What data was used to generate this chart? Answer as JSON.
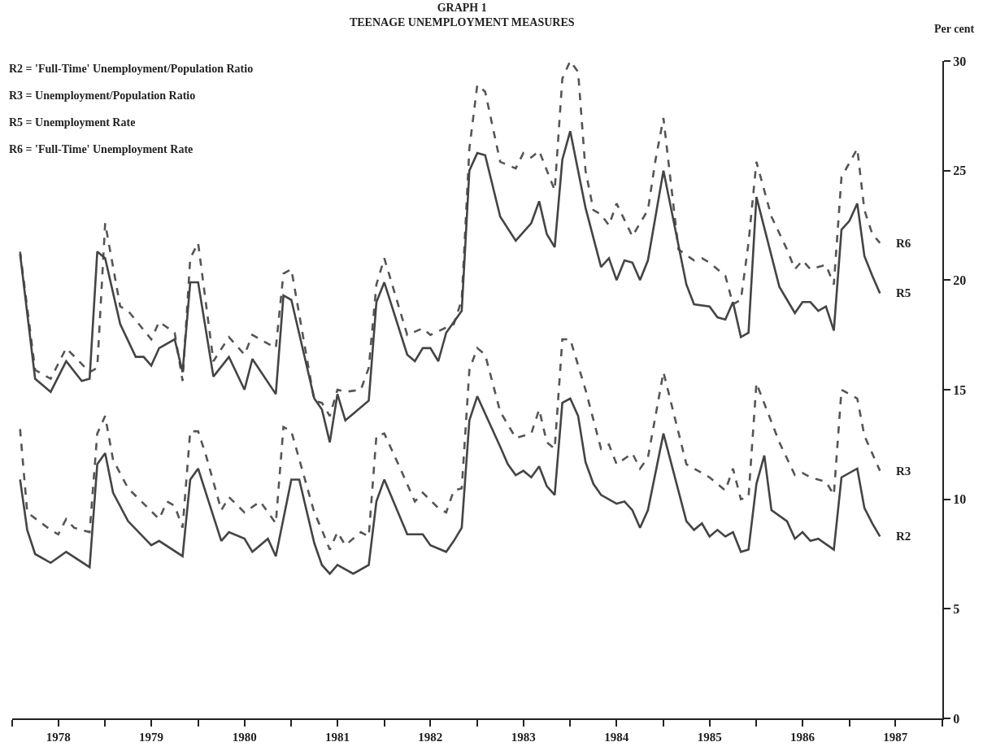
{
  "chart_data": {
    "type": "line",
    "title": "GRAPH 1\nTEENAGE UNEMPLOYMENT MEASURES",
    "ylabel": "Per cent",
    "annotations": [
      "R2 = 'Full-Time' Unemployment/Population Ratio",
      "R3 = Unemployment/Population Ratio",
      "R5 = Unemployment Rate",
      "R6 = 'Full-Time' Unemployment Rate"
    ],
    "xlim": [
      "1978-01",
      "1988-01"
    ],
    "xticks": [
      {
        "value": "1978-01",
        "label": null
      },
      {
        "value": "1978-07",
        "label": "1978"
      },
      {
        "value": "1979-01",
        "label": null
      },
      {
        "value": "1979-07",
        "label": "1979"
      },
      {
        "value": "1980-01",
        "label": null
      },
      {
        "value": "1980-07",
        "label": "1980"
      },
      {
        "value": "1981-01",
        "label": null
      },
      {
        "value": "1981-07",
        "label": "1981"
      },
      {
        "value": "1982-01",
        "label": null
      },
      {
        "value": "1982-07",
        "label": "1982"
      },
      {
        "value": "1983-01",
        "label": null
      },
      {
        "value": "1983-07",
        "label": "1983"
      },
      {
        "value": "1984-01",
        "label": null
      },
      {
        "value": "1984-07",
        "label": "1984"
      },
      {
        "value": "1985-01",
        "label": null
      },
      {
        "value": "1985-07",
        "label": "1985"
      },
      {
        "value": "1986-01",
        "label": null
      },
      {
        "value": "1986-07",
        "label": "1986"
      },
      {
        "value": "1987-01",
        "label": null
      },
      {
        "value": "1987-07",
        "label": "1987"
      },
      {
        "value": "1988-01",
        "label": null
      }
    ],
    "ylim": [
      0,
      30
    ],
    "yticks": [
      0,
      5,
      10,
      15,
      20,
      25,
      30
    ],
    "grid": false,
    "legend": false,
    "marker": "none",
    "series": [
      {
        "name": "R6",
        "color": "#555555",
        "line_style": "dashed",
        "x": [
          "1978-02",
          "1978-04",
          "1978-06",
          "1978-08",
          "1978-11",
          "1978-12",
          "1979-01",
          "1979-03",
          "1979-04",
          "1979-07",
          "1979-08",
          "1979-10",
          "1979-11",
          "1979-12",
          "1980-01",
          "1980-03",
          "1980-05",
          "1980-07",
          "1980-08",
          "1980-11",
          "1980-12",
          "1981-01",
          "1981-04",
          "1981-05",
          "1981-06",
          "1981-07",
          "1981-08",
          "1981-10",
          "1981-11",
          "1981-12",
          "1982-01",
          "1982-04",
          "1982-06",
          "1982-07",
          "1982-10",
          "1982-11",
          "1982-12",
          "1983-01",
          "1983-02",
          "1983-04",
          "1983-06",
          "1983-07",
          "1983-08",
          "1983-09",
          "1983-11",
          "1983-12",
          "1984-01",
          "1984-02",
          "1984-03",
          "1984-04",
          "1984-05",
          "1984-06",
          "1984-07",
          "1984-09",
          "1984-10",
          "1984-11",
          "1984-12",
          "1985-01",
          "1985-03",
          "1985-05",
          "1985-06",
          "1985-07",
          "1985-09",
          "1985-10",
          "1985-11",
          "1985-12",
          "1986-01",
          "1986-03",
          "1986-05",
          "1986-06",
          "1986-07",
          "1986-08",
          "1986-10",
          "1986-11",
          "1986-12",
          "1987-02",
          "1987-03",
          "1987-04",
          "1987-05"
        ],
        "values": [
          21.3,
          15.9,
          15.5,
          16.9,
          15.8,
          16.0,
          22.6,
          18.8,
          18.6,
          17.3,
          18.1,
          17.6,
          15.4,
          21.0,
          21.7,
          16.3,
          17.4,
          16.6,
          17.5,
          16.9,
          20.3,
          20.5,
          14.5,
          14.4,
          13.8,
          15.0,
          14.9,
          15.0,
          16.0,
          19.8,
          21.0,
          17.5,
          17.8,
          17.5,
          18.0,
          19.1,
          26.0,
          28.9,
          28.6,
          25.4,
          25.1,
          25.8,
          25.6,
          25.9,
          24.1,
          29.2,
          30.0,
          29.5,
          25.0,
          23.2,
          23.0,
          22.5,
          23.5,
          22.0,
          22.6,
          23.2,
          25.5,
          27.4,
          21.4,
          20.9,
          21.0,
          20.8,
          20.2,
          18.9,
          19.1,
          21.7,
          25.4,
          22.9,
          21.4,
          20.5,
          20.9,
          20.5,
          20.7,
          19.8,
          24.7,
          26.0,
          23.2,
          22.1,
          21.7
        ]
      },
      {
        "name": "R5",
        "color": "#444444",
        "line_style": "solid",
        "x": [
          "1978-02",
          "1978-04",
          "1978-06",
          "1978-08",
          "1978-10",
          "1978-11",
          "1978-12",
          "1979-01",
          "1979-03",
          "1979-05",
          "1979-06",
          "1979-07",
          "1979-08",
          "1979-10",
          "1979-11",
          "1979-12",
          "1980-01",
          "1980-03",
          "1980-05",
          "1980-07",
          "1980-08",
          "1980-11",
          "1980-12",
          "1981-01",
          "1981-04",
          "1981-05",
          "1981-06",
          "1981-07",
          "1981-08",
          "1981-11",
          "1981-12",
          "1982-01",
          "1982-04",
          "1982-05",
          "1982-06",
          "1982-07",
          "1982-08",
          "1982-09",
          "1982-11",
          "1982-12",
          "1983-01",
          "1983-02",
          "1983-04",
          "1983-06",
          "1983-08",
          "1983-09",
          "1983-10",
          "1983-11",
          "1983-12",
          "1984-01",
          "1984-03",
          "1984-05",
          "1984-06",
          "1984-07",
          "1984-08",
          "1984-09",
          "1984-10",
          "1984-11",
          "1985-01",
          "1985-04",
          "1985-05",
          "1985-07",
          "1985-08",
          "1985-09",
          "1985-10",
          "1985-11",
          "1985-12",
          "1986-01",
          "1986-04",
          "1986-06",
          "1986-07",
          "1986-08",
          "1986-09",
          "1986-10",
          "1986-11",
          "1986-12",
          "1987-01",
          "1987-02",
          "1987-03",
          "1987-04",
          "1987-05"
        ],
        "values": [
          21.2,
          15.5,
          14.9,
          16.3,
          15.4,
          15.5,
          21.3,
          21.0,
          18.0,
          16.5,
          16.5,
          16.1,
          16.9,
          17.3,
          15.8,
          19.9,
          19.9,
          15.6,
          16.5,
          15.0,
          16.4,
          14.8,
          19.3,
          19.1,
          14.6,
          14.1,
          12.6,
          14.8,
          13.6,
          14.5,
          19.0,
          19.9,
          16.6,
          16.3,
          16.9,
          16.9,
          16.3,
          17.6,
          18.6,
          25.0,
          25.8,
          25.7,
          22.9,
          21.8,
          22.6,
          23.6,
          22.1,
          21.5,
          25.5,
          26.8,
          23.3,
          20.6,
          21.0,
          20.0,
          20.9,
          20.8,
          20.0,
          20.9,
          25.0,
          19.8,
          18.9,
          18.8,
          18.3,
          18.2,
          19.0,
          17.4,
          17.6,
          23.8,
          19.7,
          18.5,
          19.0,
          19.0,
          18.6,
          18.8,
          17.7,
          22.3,
          22.7,
          23.5,
          21.1,
          20.2,
          19.4
        ]
      },
      {
        "name": "R3",
        "color": "#555555",
        "line_style": "dashed",
        "x": [
          "1978-02",
          "1978-03",
          "1978-06",
          "1978-07",
          "1978-08",
          "1978-09",
          "1978-11",
          "1978-12",
          "1979-01",
          "1979-02",
          "1979-04",
          "1979-08",
          "1979-09",
          "1979-10",
          "1979-11",
          "1979-12",
          "1980-01",
          "1980-02",
          "1980-04",
          "1980-05",
          "1980-07",
          "1980-09",
          "1980-11",
          "1980-12",
          "1981-01",
          "1981-04",
          "1981-05",
          "1981-06",
          "1981-07",
          "1981-08",
          "1981-10",
          "1981-11",
          "1981-12",
          "1982-01",
          "1982-03",
          "1982-05",
          "1982-06",
          "1982-08",
          "1982-09",
          "1982-10",
          "1982-11",
          "1982-12",
          "1983-01",
          "1983-02",
          "1983-04",
          "1983-06",
          "1983-08",
          "1983-09",
          "1983-10",
          "1983-11",
          "1983-12",
          "1984-01",
          "1984-03",
          "1984-05",
          "1984-06",
          "1984-07",
          "1984-09",
          "1984-10",
          "1984-11",
          "1985-01",
          "1985-04",
          "1985-07",
          "1985-08",
          "1985-09",
          "1985-10",
          "1985-11",
          "1985-12",
          "1986-01",
          "1986-04",
          "1986-06",
          "1986-07",
          "1986-08",
          "1986-10",
          "1986-11",
          "1986-12",
          "1987-02",
          "1987-03",
          "1987-05"
        ],
        "values": [
          13.2,
          9.4,
          8.6,
          8.4,
          9.1,
          8.7,
          8.5,
          13.0,
          13.8,
          11.8,
          10.5,
          9.1,
          9.9,
          9.7,
          8.7,
          13.1,
          13.1,
          12.0,
          9.5,
          10.1,
          9.4,
          9.9,
          8.9,
          13.3,
          13.1,
          9.4,
          8.6,
          7.7,
          8.5,
          7.9,
          8.5,
          8.3,
          12.9,
          13.0,
          11.5,
          9.9,
          10.3,
          9.6,
          9.4,
          10.4,
          10.5,
          15.9,
          16.9,
          16.6,
          14.0,
          12.8,
          13.0,
          14.1,
          12.6,
          12.3,
          17.3,
          17.3,
          15.0,
          12.3,
          12.5,
          11.6,
          12.1,
          11.4,
          11.9,
          15.8,
          11.6,
          11.0,
          10.7,
          10.4,
          11.4,
          10.0,
          10.1,
          15.3,
          12.6,
          11.1,
          11.2,
          11.0,
          10.8,
          10.2,
          15.0,
          14.6,
          12.9,
          11.3
        ]
      },
      {
        "name": "R2",
        "color": "#444444",
        "line_style": "solid",
        "x": [
          "1978-02",
          "1978-03",
          "1978-04",
          "1978-06",
          "1978-08",
          "1978-11",
          "1978-12",
          "1979-01",
          "1979-02",
          "1979-04",
          "1979-07",
          "1979-08",
          "1979-11",
          "1979-12",
          "1980-01",
          "1980-04",
          "1980-05",
          "1980-07",
          "1980-08",
          "1980-10",
          "1980-11",
          "1981-01",
          "1981-02",
          "1981-04",
          "1981-05",
          "1981-06",
          "1981-07",
          "1981-09",
          "1981-11",
          "1981-12",
          "1982-01",
          "1982-04",
          "1982-06",
          "1982-07",
          "1982-09",
          "1982-10",
          "1982-11",
          "1982-12",
          "1983-01",
          "1983-04",
          "1983-05",
          "1983-06",
          "1983-07",
          "1983-08",
          "1983-09",
          "1983-10",
          "1983-11",
          "1983-12",
          "1984-01",
          "1984-02",
          "1984-03",
          "1984-04",
          "1984-05",
          "1984-07",
          "1984-08",
          "1984-09",
          "1984-10",
          "1984-11",
          "1985-01",
          "1985-04",
          "1985-05",
          "1985-06",
          "1985-07",
          "1985-08",
          "1985-09",
          "1985-10",
          "1985-11",
          "1985-12",
          "1986-01",
          "1986-02",
          "1986-03",
          "1986-05",
          "1986-06",
          "1986-07",
          "1986-08",
          "1986-09",
          "1986-11",
          "1986-12",
          "1987-02",
          "1987-03",
          "1987-04",
          "1987-05"
        ],
        "values": [
          10.9,
          8.6,
          7.5,
          7.1,
          7.6,
          6.9,
          11.6,
          12.1,
          10.3,
          9.0,
          7.9,
          8.1,
          7.4,
          10.9,
          11.4,
          8.1,
          8.5,
          8.2,
          7.6,
          8.2,
          7.4,
          10.9,
          10.9,
          8.0,
          7.0,
          6.6,
          7.0,
          6.6,
          7.0,
          9.9,
          10.9,
          8.4,
          8.4,
          7.9,
          7.6,
          8.1,
          8.7,
          13.6,
          14.7,
          12.4,
          11.6,
          11.1,
          11.3,
          11.0,
          11.5,
          10.6,
          10.2,
          14.4,
          14.6,
          13.8,
          11.7,
          10.7,
          10.2,
          9.8,
          9.9,
          9.5,
          8.7,
          9.5,
          13.0,
          9.0,
          8.6,
          8.9,
          8.3,
          8.6,
          8.3,
          8.5,
          7.6,
          7.7,
          10.7,
          12.0,
          9.5,
          9.0,
          8.2,
          8.5,
          8.1,
          8.2,
          7.7,
          11.0,
          11.4,
          9.6,
          8.9,
          8.3
        ]
      }
    ]
  }
}
